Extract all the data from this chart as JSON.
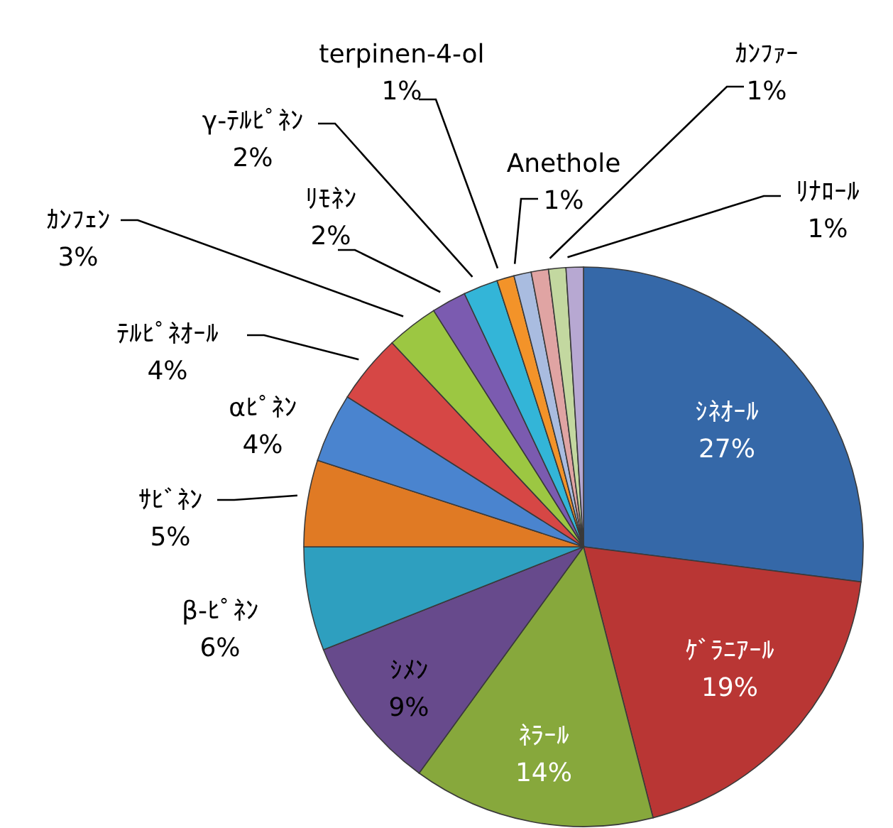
{
  "chart_data": {
    "type": "pie",
    "categories": [
      "ｼﾈｵｰﾙ",
      "ｹﾞﾗﾆｱｰﾙ",
      "ﾈﾗｰﾙ",
      "ｼﾒﾝ",
      "β-ﾋﾟﾈﾝ",
      "ｻﾋﾞﾈﾝ",
      "αﾋﾟﾈﾝ",
      "ﾃﾙﾋﾟﾈｵｰﾙ",
      "ｶﾝﾌｪﾝ",
      "ﾘﾓﾈﾝ",
      "γ-ﾃﾙﾋﾟﾈﾝ",
      "terpinen-4-ol",
      "Anethole",
      null,
      "ｶﾝﾌｧｰ",
      "ﾘﾅﾛｰﾙ"
    ],
    "values": [
      27,
      19,
      14,
      9,
      6,
      5,
      4,
      4,
      3,
      2,
      2,
      1,
      1,
      1,
      1,
      1
    ],
    "value_labels": [
      "27%",
      "19%",
      "14%",
      "9%",
      "6%",
      "5%",
      "4%",
      "4%",
      "3%",
      "2%",
      "2%",
      "1%",
      "1%",
      null,
      "1%",
      "1%"
    ],
    "colors": [
      "#3568a8",
      "#b93634",
      "#87a83c",
      "#674a8c",
      "#2e9fbf",
      "#e07a24",
      "#4a84cf",
      "#d64745",
      "#9cc742",
      "#7b5bb0",
      "#33b5d8",
      "#f39329",
      "#a9bce0",
      "#e0a4a3",
      "#c3d8a0",
      "#b7a8d2"
    ]
  }
}
